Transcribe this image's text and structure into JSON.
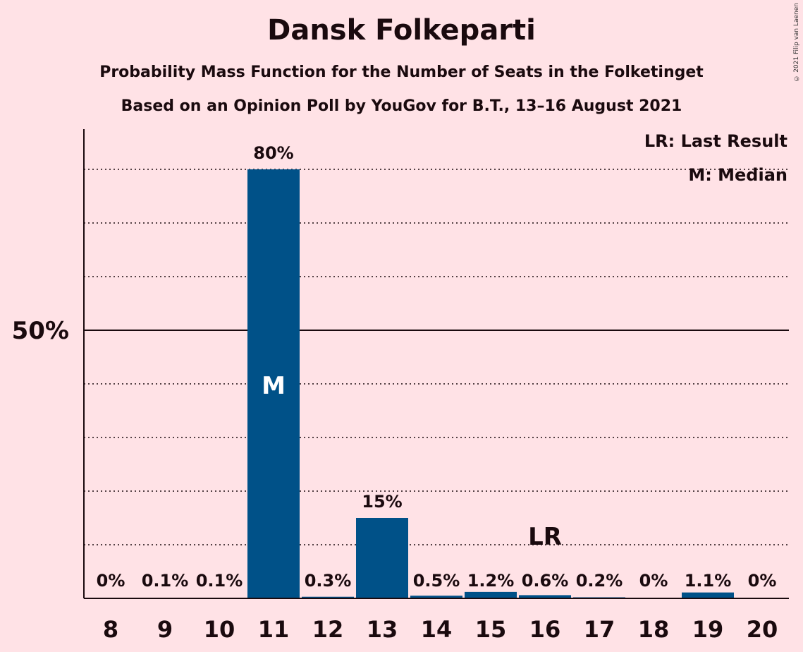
{
  "chart_data": {
    "type": "bar",
    "title": "Dansk Folkeparti",
    "subtitle": "Probability Mass Function for the Number of Seats in the Folketinget",
    "subtitle2": "Based on an Opinion Poll by YouGov for B.T., 13–16 August 2021",
    "copyright": "© 2021 Filip van Laenen",
    "categories": [
      "8",
      "9",
      "10",
      "11",
      "12",
      "13",
      "14",
      "15",
      "16",
      "17",
      "18",
      "19",
      "20"
    ],
    "values": [
      0,
      0.1,
      0.1,
      80,
      0.3,
      15,
      0.5,
      1.2,
      0.6,
      0.2,
      0,
      1.1,
      0
    ],
    "value_labels": [
      "0%",
      "0.1%",
      "0.1%",
      "80%",
      "0.3%",
      "15%",
      "0.5%",
      "1.2%",
      "0.6%",
      "0.2%",
      "0%",
      "1.1%",
      "0%"
    ],
    "ylim": [
      0,
      87.5
    ],
    "ytick_label": "50%",
    "ytick_value": 50,
    "gridlines": [
      10,
      20,
      30,
      40,
      60,
      70,
      80
    ],
    "median_category": "11",
    "median_label": "M",
    "last_result_category": "16",
    "last_result_label": "LR",
    "legend": [
      "LR: Last Result",
      "M: Median"
    ],
    "bar_color": "#005188",
    "background_color": "#ffe2e6"
  }
}
